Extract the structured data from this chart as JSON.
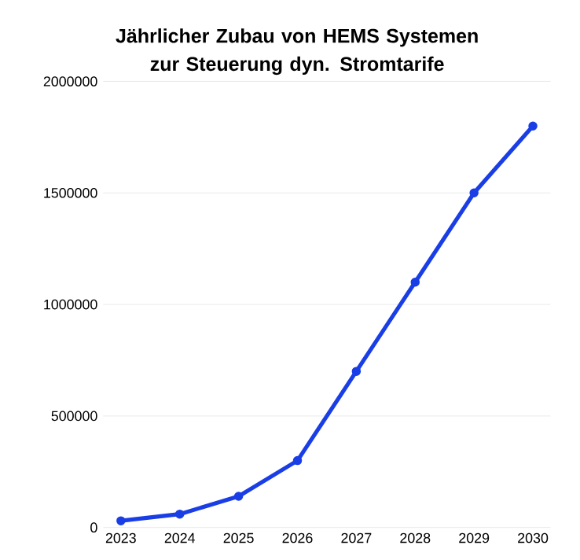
{
  "chart_data": {
    "type": "line",
    "title": "Jährlicher Zubau von HEMS Systemen zur Steuerung dyn. Stromtarife",
    "categories": [
      "2023",
      "2024",
      "2025",
      "2026",
      "2027",
      "2028",
      "2029",
      "2030"
    ],
    "values": [
      30000,
      60000,
      140000,
      300000,
      700000,
      1100000,
      1500000,
      1800000
    ],
    "color": "#1a3ee6",
    "marker": "circle",
    "line_style": "solid",
    "grid": "y",
    "ylim": [
      0,
      2000000
    ],
    "yticks": [
      0,
      500000,
      1000000,
      1500000,
      2000000
    ]
  }
}
